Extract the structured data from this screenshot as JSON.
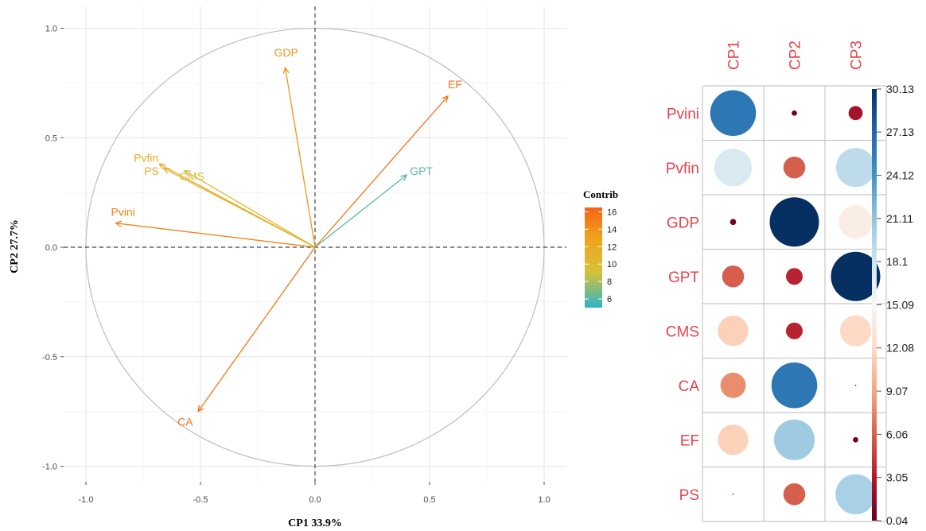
{
  "chart_data": [
    {
      "type": "scatter",
      "subtype": "pca-variable-correlation-circle",
      "xlabel": "CP1 33.9%",
      "ylabel": "CP2 27.7%",
      "xlim": [
        -1.1,
        1.1
      ],
      "ylim": [
        -1.1,
        1.1
      ],
      "x_ticks": [
        "-1.0",
        "-0.5",
        "0.0",
        "0.5",
        "1.0"
      ],
      "y_ticks": [
        "-1.0",
        "-0.5",
        "0.0",
        "0.5",
        "1.0"
      ],
      "grid": true,
      "legend": {
        "title": "Contrib",
        "placement": "right",
        "range": [
          5,
          16.5
        ],
        "ticks": [
          "6",
          "8",
          "10",
          "12",
          "14",
          "16"
        ],
        "colors": [
          "#2fb3c8",
          "#d4c23a",
          "#f1a31c",
          "#f56316"
        ]
      },
      "variables": [
        {
          "name": "GDP",
          "x": -0.13,
          "y": 0.82,
          "contrib": 13.5
        },
        {
          "name": "EF",
          "x": 0.58,
          "y": 0.69,
          "contrib": 15.5
        },
        {
          "name": "GPT",
          "x": 0.4,
          "y": 0.33,
          "contrib": 6.0
        },
        {
          "name": "Pvfin",
          "x": -0.68,
          "y": 0.38,
          "contrib": 11.5
        },
        {
          "name": "PS",
          "x": -0.66,
          "y": 0.36,
          "contrib": 11.0
        },
        {
          "name": "CMS",
          "x": -0.57,
          "y": 0.35,
          "contrib": 9.5
        },
        {
          "name": "Pvini",
          "x": -0.87,
          "y": 0.11,
          "contrib": 14.5
        },
        {
          "name": "CA",
          "x": -0.51,
          "y": -0.75,
          "contrib": 15.5
        }
      ]
    },
    {
      "type": "heatmap",
      "subtype": "circle-correlation-matrix",
      "columns": [
        "CP1",
        "CP2",
        "CP3"
      ],
      "rows": [
        "Pvini",
        "Pvfin",
        "GDP",
        "GPT",
        "CMS",
        "CA",
        "EF",
        "PS"
      ],
      "values": [
        [
          26.0,
          0.4,
          2.5
        ],
        [
          17.5,
          6.0,
          19.0
        ],
        [
          0.5,
          30.13,
          14.0
        ],
        [
          6.0,
          3.5,
          30.13
        ],
        [
          11.5,
          3.5,
          12.0
        ],
        [
          8.0,
          26.0,
          0.06
        ],
        [
          11.5,
          20.5,
          0.4
        ],
        [
          0.04,
          6.0,
          20.0
        ]
      ],
      "colorbar": {
        "range": [
          0.04,
          30.13
        ],
        "ticks": [
          "30.13",
          "27.13",
          "24.12",
          "21.11",
          "18.1",
          "15.09",
          "12.08",
          "9.07",
          "6.06",
          "3.05",
          "0.04"
        ],
        "colors": [
          "#67001f",
          "#b2182b",
          "#d6604d",
          "#f4a582",
          "#fddbc7",
          "#f7f7f7",
          "#d1e5f0",
          "#92c5de",
          "#4393c3",
          "#2166ac",
          "#053061"
        ]
      }
    }
  ]
}
